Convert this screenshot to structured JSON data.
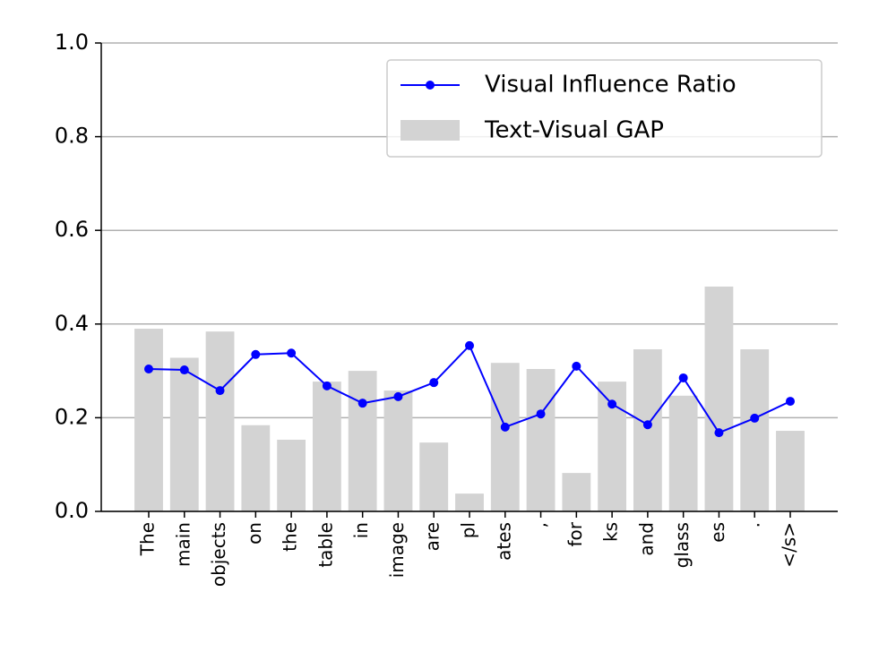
{
  "chart_data": {
    "type": "combo",
    "categories": [
      "The",
      "main",
      "objects",
      "on",
      "the",
      "table",
      "in",
      "image",
      "are",
      "pl",
      "ates",
      ",",
      "for",
      "ks",
      "and",
      "glass",
      "es",
      ".",
      "</s>"
    ],
    "series": [
      {
        "name": "Visual Influence Ratio",
        "type": "line",
        "color": "#0000ff",
        "values": [
          0.304,
          0.302,
          0.258,
          0.335,
          0.338,
          0.268,
          0.231,
          0.245,
          0.275,
          0.354,
          0.18,
          0.208,
          0.31,
          0.229,
          0.185,
          0.285,
          0.168,
          0.199,
          0.235
        ]
      },
      {
        "name": "Text-Visual GAP",
        "type": "bar",
        "color": "#d3d3d3",
        "values": [
          0.39,
          0.328,
          0.384,
          0.184,
          0.153,
          0.277,
          0.3,
          0.258,
          0.147,
          0.038,
          0.317,
          0.304,
          0.082,
          0.277,
          0.346,
          0.247,
          0.48,
          0.346,
          0.172
        ]
      }
    ],
    "ylim": [
      0,
      1
    ],
    "yticks": [
      {
        "value": 0,
        "label": "0.0"
      },
      0.2,
      0.4,
      0.6,
      0.8,
      {
        "value": 1,
        "label": "1.0"
      }
    ],
    "grid": true,
    "legend": "upper right"
  }
}
